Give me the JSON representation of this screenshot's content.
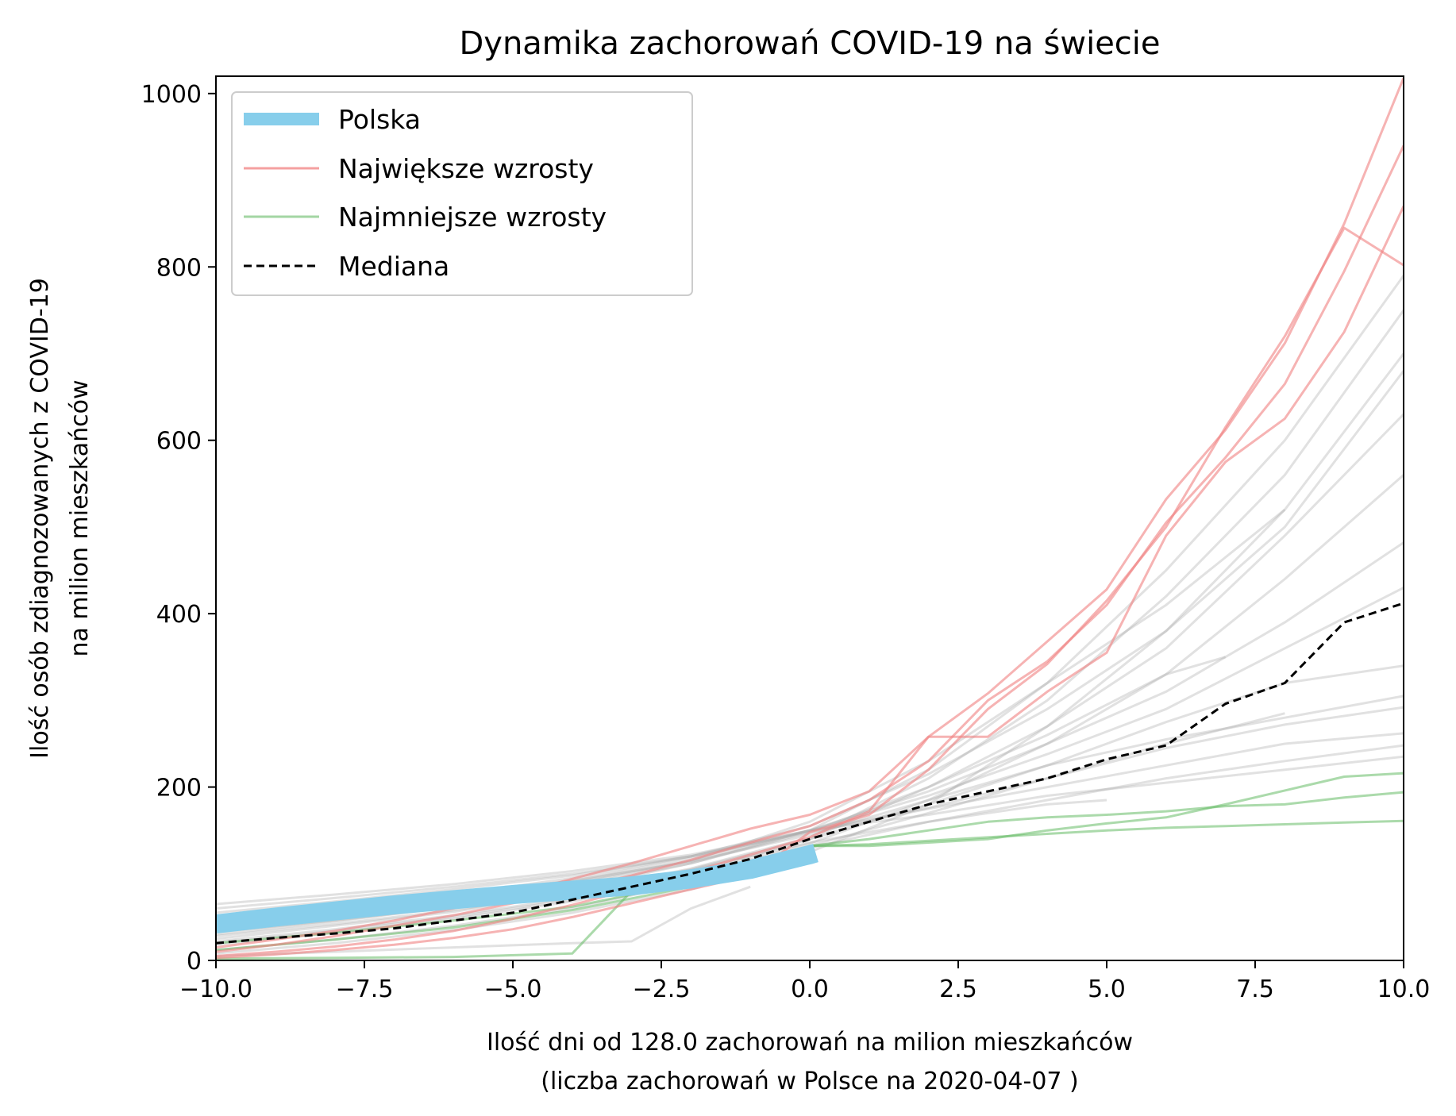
{
  "chart_data": {
    "type": "line",
    "title": "Dynamika zachorowań COVID-19 na świecie",
    "xlabel_line1": "Ilość dni od 128.0 zachorowań na milion mieszkańców",
    "xlabel_line2": "(liczba zachorowań w Polsce na 2020-04-07 )",
    "ylabel_line1": "Ilość osób zdiagnozowanych z COVID-19",
    "ylabel_line2": "na milion mieszkańców",
    "xlim": [
      -10,
      10
    ],
    "ylim": [
      0,
      1020
    ],
    "xticks": [
      -10,
      -7.5,
      -5,
      -2.5,
      0,
      2.5,
      5,
      7.5,
      10
    ],
    "xtick_labels": [
      "−10.0",
      "−7.5",
      "−5.0",
      "−2.5",
      "0.0",
      "2.5",
      "5.0",
      "7.5",
      "10.0"
    ],
    "yticks": [
      0,
      200,
      400,
      600,
      800,
      1000
    ],
    "ytick_labels": [
      "0",
      "200",
      "400",
      "600",
      "800",
      "1000"
    ],
    "grid": false,
    "legend_position": "top-left",
    "legend": [
      {
        "label": "Polska",
        "color": "#87ceeb",
        "style": "thick"
      },
      {
        "label": "Największe wzrosty",
        "color": "#f08080",
        "style": "thin"
      },
      {
        "label": "Najmniejsze wzrosty",
        "color": "#66bb66",
        "style": "thin"
      },
      {
        "label": "Mediana",
        "color": "#000000",
        "style": "dashed"
      }
    ],
    "series": [
      {
        "name": "Polska",
        "group": "poland",
        "color": "#87ceeb",
        "x": [
          -10,
          -9,
          -8,
          -7,
          -6,
          -5,
          -4,
          -3,
          -2,
          -1,
          0,
          0.1
        ],
        "y": [
          42,
          50,
          57,
          64,
          70,
          76,
          81,
          86,
          94,
          105,
          122,
          124
        ]
      },
      {
        "name": "Mediana",
        "group": "median",
        "color": "#000000",
        "x": [
          -10,
          -9,
          -8,
          -7,
          -6,
          -5,
          -4,
          -3,
          -2,
          -1,
          0,
          1,
          2,
          3,
          4,
          5,
          6,
          7,
          8,
          9,
          10
        ],
        "y": [
          20,
          26,
          31,
          37,
          46,
          55,
          70,
          85,
          100,
          117,
          140,
          160,
          180,
          195,
          210,
          232,
          248,
          296,
          320,
          390,
          412
        ]
      },
      {
        "group": "top",
        "color": "#f08080",
        "x": [
          -10,
          -9,
          -8,
          -7,
          -6,
          -5,
          -4,
          -3,
          -2,
          -1,
          0,
          1,
          2,
          3,
          4,
          5,
          6,
          7,
          8,
          9,
          10
        ],
        "y": [
          5,
          10,
          16,
          24,
          34,
          48,
          64,
          82,
          102,
          122,
          142,
          172,
          258,
          308,
          368,
          428,
          532,
          612,
          712,
          850,
          1018
        ]
      },
      {
        "group": "top",
        "color": "#f08080",
        "x": [
          -10,
          -9,
          -8,
          -7,
          -6,
          -5,
          -4,
          -3,
          -2,
          -1,
          0,
          1,
          2,
          3,
          4,
          5,
          6,
          7,
          8,
          9,
          10
        ],
        "y": [
          10,
          18,
          28,
          40,
          52,
          66,
          82,
          98,
          116,
          136,
          155,
          185,
          230,
          300,
          345,
          410,
          505,
          580,
          665,
          795,
          940
        ]
      },
      {
        "group": "top",
        "color": "#f08080",
        "x": [
          -10,
          -9,
          -8,
          -7,
          -6,
          -5,
          -4,
          -3,
          -2,
          -1,
          0,
          1,
          2,
          3,
          4,
          5,
          6,
          7,
          8,
          9,
          10
        ],
        "y": [
          15,
          24,
          34,
          46,
          60,
          76,
          94,
          112,
          132,
          152,
          168,
          195,
          258,
          258,
          310,
          355,
          490,
          575,
          625,
          725,
          870
        ]
      },
      {
        "group": "top",
        "color": "#f08080",
        "x": [
          -10,
          -9,
          -8,
          -7,
          -6,
          -5,
          -4,
          -3,
          -2,
          -1,
          0,
          1,
          2,
          3,
          4,
          5,
          6,
          7,
          8,
          9,
          10
        ],
        "y": [
          3,
          7,
          12,
          18,
          26,
          36,
          50,
          66,
          82,
          98,
          148,
          168,
          220,
          290,
          342,
          415,
          500,
          615,
          720,
          845,
          802
        ]
      },
      {
        "group": "bottom",
        "color": "#66bb66",
        "x": [
          -10,
          -8,
          -6,
          -4,
          -3,
          -2,
          -1,
          0,
          1,
          2,
          3,
          4,
          5,
          6,
          7,
          8,
          9,
          10
        ],
        "y": [
          2,
          3,
          4,
          8,
          80,
          96,
          110,
          132,
          132,
          136,
          140,
          150,
          158,
          165,
          180,
          196,
          212,
          216
        ]
      },
      {
        "group": "bottom",
        "color": "#66bb66",
        "x": [
          -10,
          -8,
          -6,
          -4,
          -2,
          -1,
          0,
          1,
          2,
          3,
          4,
          5,
          6,
          7,
          8,
          9,
          10
        ],
        "y": [
          12,
          24,
          38,
          58,
          85,
          100,
          132,
          140,
          150,
          160,
          165,
          168,
          172,
          178,
          180,
          188,
          194
        ]
      },
      {
        "group": "bottom",
        "color": "#66bb66",
        "x": [
          -10,
          -8,
          -6,
          -4,
          -2,
          -1,
          0,
          1,
          2,
          3,
          4,
          5,
          6,
          7,
          8,
          9,
          10
        ],
        "y": [
          20,
          32,
          46,
          62,
          90,
          104,
          132,
          134,
          138,
          142,
          146,
          150,
          153,
          155,
          157,
          159,
          161
        ]
      },
      {
        "group": "other",
        "color": "#aaaaaa",
        "x": [
          -10,
          -8,
          -6,
          -4,
          -2,
          0,
          2,
          4,
          6,
          8,
          10
        ],
        "y": [
          30,
          45,
          62,
          82,
          112,
          150,
          220,
          320,
          450,
          600,
          790
        ]
      },
      {
        "group": "other",
        "color": "#aaaaaa",
        "x": [
          -10,
          -8,
          -6,
          -4,
          -2,
          0,
          2,
          4,
          6,
          8,
          10
        ],
        "y": [
          25,
          40,
          56,
          78,
          106,
          142,
          210,
          300,
          420,
          560,
          750
        ]
      },
      {
        "group": "other",
        "color": "#aaaaaa",
        "x": [
          -10,
          -8,
          -6,
          -4,
          -2,
          0,
          2,
          4,
          6,
          8,
          10
        ],
        "y": [
          45,
          60,
          76,
          95,
          120,
          155,
          215,
          290,
          380,
          520,
          700
        ]
      },
      {
        "group": "other",
        "color": "#aaaaaa",
        "x": [
          -10,
          -8,
          -6,
          -4,
          -2,
          0,
          2,
          4,
          6,
          8,
          10
        ],
        "y": [
          35,
          50,
          66,
          86,
          112,
          148,
          200,
          270,
          360,
          490,
          630
        ]
      },
      {
        "group": "other",
        "color": "#aaaaaa",
        "x": [
          -10,
          -8,
          -6,
          -4,
          -2,
          0,
          2,
          4,
          6,
          8,
          10
        ],
        "y": [
          20,
          34,
          50,
          70,
          98,
          135,
          185,
          250,
          330,
          440,
          560
        ]
      },
      {
        "group": "other",
        "color": "#aaaaaa",
        "x": [
          -10,
          -8,
          -6,
          -4,
          -2,
          0,
          2,
          4,
          6,
          8,
          10
        ],
        "y": [
          40,
          54,
          70,
          90,
          115,
          150,
          195,
          250,
          310,
          390,
          482
        ]
      },
      {
        "group": "other",
        "color": "#aaaaaa",
        "x": [
          -10,
          -8,
          -6,
          -4,
          -2,
          0,
          2,
          4,
          6,
          8,
          10
        ],
        "y": [
          55,
          68,
          82,
          98,
          120,
          150,
          190,
          238,
          290,
          360,
          430
        ]
      },
      {
        "group": "other",
        "color": "#aaaaaa",
        "x": [
          -10,
          -8,
          -6,
          -4,
          -2,
          0,
          2,
          4,
          6,
          8,
          10
        ],
        "y": [
          28,
          42,
          58,
          78,
          105,
          140,
          180,
          225,
          275,
          320,
          340
        ]
      },
      {
        "group": "other",
        "color": "#aaaaaa",
        "x": [
          -10,
          -8,
          -6,
          -4,
          -2,
          0,
          2,
          4,
          6,
          8,
          10
        ],
        "y": [
          50,
          62,
          76,
          92,
          114,
          145,
          185,
          225,
          255,
          280,
          305
        ]
      },
      {
        "group": "other",
        "color": "#aaaaaa",
        "x": [
          -10,
          -8,
          -6,
          -4,
          -2,
          0,
          2,
          4,
          6,
          8,
          10
        ],
        "y": [
          18,
          32,
          48,
          68,
          96,
          132,
          170,
          210,
          245,
          272,
          292
        ]
      },
      {
        "group": "other",
        "color": "#aaaaaa",
        "x": [
          -10,
          -8,
          -6,
          -4,
          -2,
          0,
          2,
          4,
          6,
          8,
          10
        ],
        "y": [
          60,
          72,
          85,
          100,
          120,
          148,
          175,
          200,
          225,
          250,
          262
        ]
      },
      {
        "group": "other",
        "color": "#aaaaaa",
        "x": [
          -10,
          -8,
          -6,
          -4,
          -2,
          0,
          2,
          4,
          6,
          8,
          10
        ],
        "y": [
          33,
          46,
          62,
          80,
          104,
          136,
          160,
          185,
          210,
          230,
          248
        ]
      },
      {
        "group": "other",
        "color": "#aaaaaa",
        "x": [
          -10,
          -8,
          -6,
          -4,
          -2,
          0,
          2,
          4,
          6,
          8,
          10
        ],
        "y": [
          65,
          76,
          88,
          103,
          122,
          150,
          168,
          190,
          205,
          220,
          235
        ]
      },
      {
        "group": "other",
        "color": "#aaaaaa",
        "x": [
          -10,
          -8,
          -6,
          -4,
          -2,
          0,
          2,
          4,
          6,
          8,
          10
        ],
        "y": [
          8,
          20,
          35,
          55,
          82,
          125,
          180,
          270,
          380,
          500,
          680
        ]
      },
      {
        "group": "other",
        "color": "#aaaaaa",
        "x": [
          -10,
          -8,
          -6,
          -4,
          -2,
          0,
          2,
          4,
          6,
          8
        ],
        "y": [
          38,
          52,
          68,
          88,
          115,
          160,
          230,
          320,
          410,
          520
        ]
      },
      {
        "group": "other",
        "color": "#aaaaaa",
        "x": [
          -10,
          -8,
          -6,
          -4,
          -2,
          0,
          2,
          4,
          6,
          7
        ],
        "y": [
          22,
          36,
          52,
          72,
          100,
          140,
          200,
          260,
          330,
          350
        ]
      },
      {
        "group": "other",
        "color": "#aaaaaa",
        "x": [
          -10,
          -8,
          -6,
          -4,
          -2,
          0,
          2,
          4,
          6,
          8
        ],
        "y": [
          48,
          60,
          74,
          92,
          118,
          150,
          176,
          210,
          250,
          285
        ]
      },
      {
        "group": "other",
        "color": "#aaaaaa",
        "x": [
          -10,
          -8,
          -6,
          -4,
          -3,
          -2,
          -1
        ],
        "y": [
          5,
          10,
          15,
          20,
          22,
          60,
          85
        ]
      },
      {
        "group": "other",
        "color": "#aaaaaa",
        "x": [
          -10,
          -8,
          -6,
          -4,
          -2,
          0,
          2,
          4,
          5
        ],
        "y": [
          12,
          24,
          40,
          60,
          90,
          130,
          160,
          180,
          185
        ]
      }
    ]
  }
}
